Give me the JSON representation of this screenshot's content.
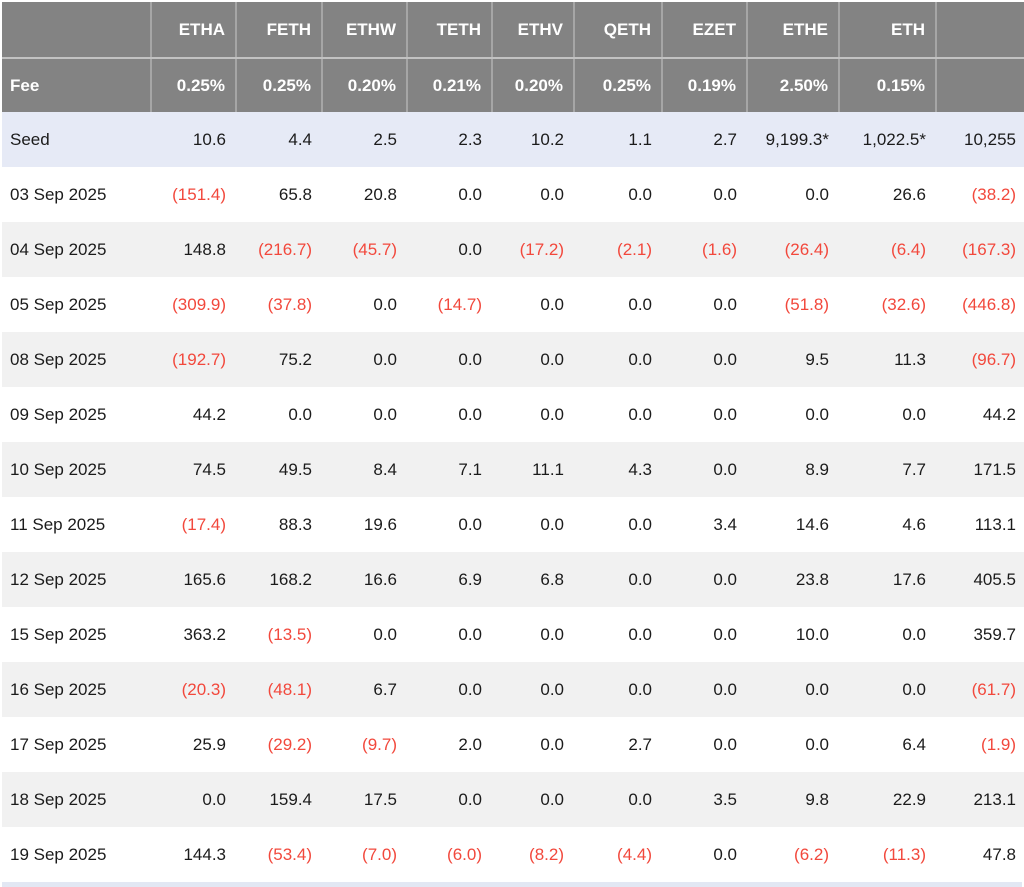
{
  "chart_data": {
    "type": "table",
    "columns": [
      "",
      "ETHA",
      "FETH",
      "ETHW",
      "TETH",
      "ETHV",
      "QETH",
      "EZET",
      "ETHE",
      "ETH",
      ""
    ],
    "fee_row": {
      "label": "Fee",
      "values": [
        "0.25%",
        "0.25%",
        "0.20%",
        "0.21%",
        "0.20%",
        "0.25%",
        "0.19%",
        "2.50%",
        "0.15%",
        ""
      ]
    },
    "rows": [
      {
        "label": "Seed",
        "values": [
          "10.6",
          "4.4",
          "2.5",
          "2.3",
          "10.2",
          "1.1",
          "2.7",
          "9,199.3*",
          "1,022.5*",
          "10,255"
        ]
      },
      {
        "label": "03 Sep 2025",
        "values": [
          "(151.4)",
          "65.8",
          "20.8",
          "0.0",
          "0.0",
          "0.0",
          "0.0",
          "0.0",
          "26.6",
          "(38.2)"
        ]
      },
      {
        "label": "04 Sep 2025",
        "values": [
          "148.8",
          "(216.7)",
          "(45.7)",
          "0.0",
          "(17.2)",
          "(2.1)",
          "(1.6)",
          "(26.4)",
          "(6.4)",
          "(167.3)"
        ]
      },
      {
        "label": "05 Sep 2025",
        "values": [
          "(309.9)",
          "(37.8)",
          "0.0",
          "(14.7)",
          "0.0",
          "0.0",
          "0.0",
          "(51.8)",
          "(32.6)",
          "(446.8)"
        ]
      },
      {
        "label": "08 Sep 2025",
        "values": [
          "(192.7)",
          "75.2",
          "0.0",
          "0.0",
          "0.0",
          "0.0",
          "0.0",
          "9.5",
          "11.3",
          "(96.7)"
        ]
      },
      {
        "label": "09 Sep 2025",
        "values": [
          "44.2",
          "0.0",
          "0.0",
          "0.0",
          "0.0",
          "0.0",
          "0.0",
          "0.0",
          "0.0",
          "44.2"
        ]
      },
      {
        "label": "10 Sep 2025",
        "values": [
          "74.5",
          "49.5",
          "8.4",
          "7.1",
          "11.1",
          "4.3",
          "0.0",
          "8.9",
          "7.7",
          "171.5"
        ]
      },
      {
        "label": "11 Sep 2025",
        "values": [
          "(17.4)",
          "88.3",
          "19.6",
          "0.0",
          "0.0",
          "0.0",
          "3.4",
          "14.6",
          "4.6",
          "113.1"
        ]
      },
      {
        "label": "12 Sep 2025",
        "values": [
          "165.6",
          "168.2",
          "16.6",
          "6.9",
          "6.8",
          "0.0",
          "0.0",
          "23.8",
          "17.6",
          "405.5"
        ]
      },
      {
        "label": "15 Sep 2025",
        "values": [
          "363.2",
          "(13.5)",
          "0.0",
          "0.0",
          "0.0",
          "0.0",
          "0.0",
          "10.0",
          "0.0",
          "359.7"
        ]
      },
      {
        "label": "16 Sep 2025",
        "values": [
          "(20.3)",
          "(48.1)",
          "6.7",
          "0.0",
          "0.0",
          "0.0",
          "0.0",
          "0.0",
          "0.0",
          "(61.7)"
        ]
      },
      {
        "label": "17 Sep 2025",
        "values": [
          "25.9",
          "(29.2)",
          "(9.7)",
          "2.0",
          "0.0",
          "2.7",
          "0.0",
          "0.0",
          "6.4",
          "(1.9)"
        ]
      },
      {
        "label": "18 Sep 2025",
        "values": [
          "0.0",
          "159.4",
          "17.5",
          "0.0",
          "0.0",
          "0.0",
          "3.5",
          "9.8",
          "22.9",
          "213.1"
        ]
      },
      {
        "label": "19 Sep 2025",
        "values": [
          "144.3",
          "(53.4)",
          "(7.0)",
          "(6.0)",
          "(8.2)",
          "(4.4)",
          "0.0",
          "(6.2)",
          "(11.3)",
          "47.8"
        ]
      }
    ],
    "negative_format": "parentheses shown in red"
  },
  "colors": {
    "header_bg": "#838383",
    "header_text": "#ffffff",
    "seed_row_bg": "#e6eaf6",
    "stripe_bg": "#f1f1f1",
    "negative": "#f2483c",
    "text": "#1b1b1b",
    "bottom_strip": "#e2e7f3"
  }
}
